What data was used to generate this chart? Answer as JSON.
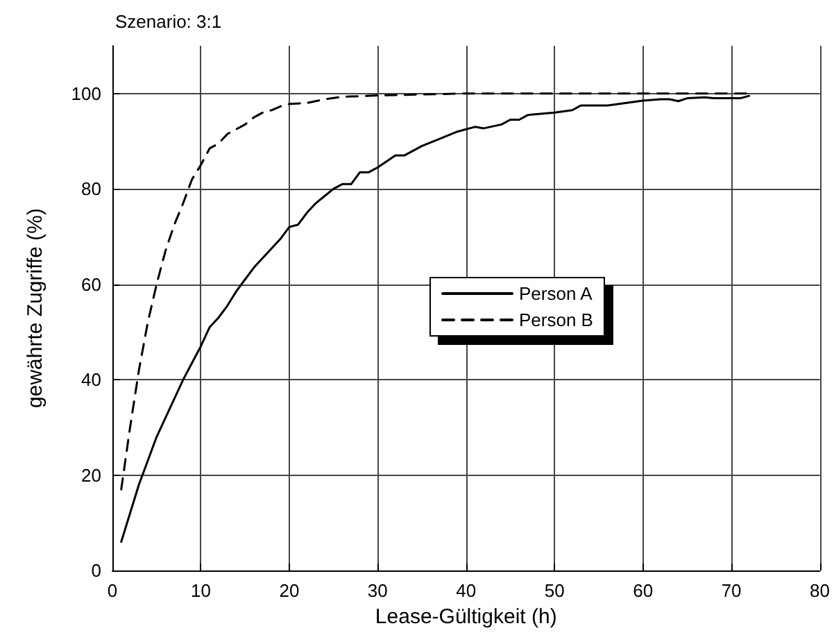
{
  "chart_data": {
    "type": "line",
    "title": "Szenario: 3:1",
    "xlabel": "Lease-Gültigkeit (h)",
    "ylabel": "gewährte Zugriffe (%)",
    "xlim": [
      0,
      80
    ],
    "xticks": [
      0,
      10,
      20,
      30,
      40,
      50,
      60,
      70,
      80
    ],
    "ylim": [
      0,
      110
    ],
    "yticks": [
      0,
      20,
      40,
      60,
      80,
      100
    ],
    "grid": true,
    "legend": "right",
    "marker": "none",
    "series": [
      {
        "name": "Person A",
        "color": "#000000",
        "line_style": "solid",
        "x": [
          1,
          2,
          3,
          4,
          5,
          6,
          7,
          8,
          9,
          10,
          11,
          12,
          13,
          14,
          15,
          16,
          17,
          18,
          19,
          20,
          21,
          22,
          23,
          24,
          25,
          26,
          27,
          28,
          29,
          30,
          32,
          33,
          35,
          37,
          39,
          40,
          41,
          42,
          44,
          45,
          46,
          47,
          50,
          52,
          53,
          56,
          58,
          60,
          62,
          63,
          64,
          65,
          67,
          68,
          70,
          71,
          72
        ],
        "values": [
          6,
          12,
          18,
          23,
          28,
          32,
          36,
          40,
          43.5,
          47,
          51,
          53,
          55.5,
          58.5,
          61,
          63.5,
          65.5,
          67.5,
          69.5,
          72,
          72.5,
          75,
          77,
          78.5,
          80,
          81,
          81,
          83.5,
          83.5,
          84.5,
          87,
          87,
          89,
          90.5,
          92,
          92.5,
          93,
          92.7,
          93.5,
          94.5,
          94.5,
          95.5,
          96,
          96.5,
          97.5,
          97.5,
          98,
          98.5,
          98.8,
          98.8,
          98.4,
          99,
          99.2,
          99,
          99,
          99,
          99.5
        ]
      },
      {
        "name": "Person B",
        "color": "#000000",
        "line_style": "dashed",
        "x": [
          1,
          2,
          3,
          4,
          5,
          6,
          7,
          8,
          9,
          10,
          11,
          12,
          13,
          14,
          15,
          16,
          17,
          18,
          19,
          20,
          22,
          24,
          26,
          30,
          35,
          40,
          72
        ],
        "values": [
          17,
          30,
          42,
          52,
          60,
          67,
          72.5,
          77,
          82,
          85,
          88.5,
          89.5,
          91.5,
          92.5,
          93.5,
          95,
          96,
          96.5,
          97.3,
          97.8,
          98,
          98.8,
          99.3,
          99.6,
          99.8,
          100,
          100
        ]
      }
    ]
  }
}
